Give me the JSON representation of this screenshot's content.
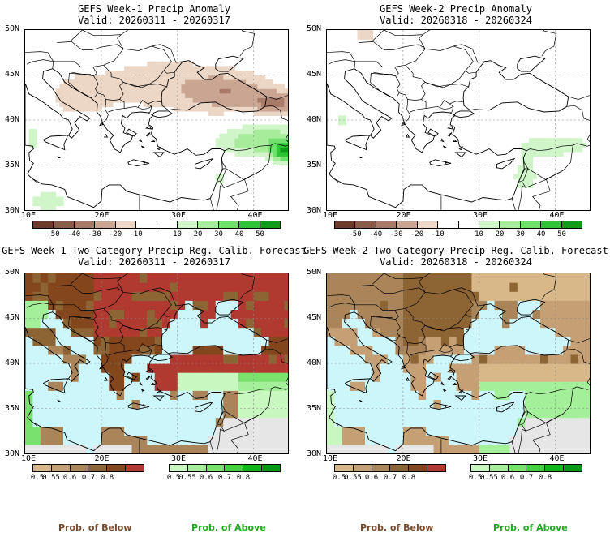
{
  "panels": [
    {
      "title": "GEFS Week-1 Precip Anomaly",
      "valid": "Valid: 20260311 - 20260317",
      "style": "anomaly"
    },
    {
      "title": "GEFS Week-2 Precip Anomaly",
      "valid": "Valid: 20260318 - 20260324",
      "style": "anomaly"
    },
    {
      "title": "GEFS Week-1 Two-Category Precip Reg. Calib. Forecast",
      "valid": "Valid: 20260311 - 20260317",
      "style": "prob-week1"
    },
    {
      "title": "GEFS Week-2 Two-Category Precip Reg. Calib. Forecast",
      "valid": "Valid: 20260318 - 20260324",
      "style": "prob-week2"
    }
  ],
  "axes": {
    "lat_labels": [
      "50N",
      "45N",
      "40N",
      "35N",
      "30N"
    ],
    "lon_labels": [
      "10E",
      "20E",
      "30E",
      "40E"
    ]
  },
  "anomaly_colorbar": {
    "colors": [
      "#6e3a2a",
      "#8c5a48",
      "#a87a68",
      "#c9a592",
      "#ecd6c6",
      "#ffffff",
      "#ffffff",
      "#cff5c8",
      "#a6ec9a",
      "#6fe06a",
      "#2fc436",
      "#0f9a1c"
    ],
    "ticks": [
      "-50",
      "-40",
      "-30",
      "-20",
      "-10",
      "10",
      "20",
      "30",
      "40",
      "50"
    ]
  },
  "below_colorbar": {
    "colors": [
      "#d8b888",
      "#c4a074",
      "#a98559",
      "#8d6434",
      "#83461d",
      "#b03a30"
    ],
    "ticks": [
      "0.5",
      "0.55",
      "0.6",
      "0.7",
      "0.8"
    ]
  },
  "above_colorbar": {
    "colors": [
      "#c8f8c0",
      "#a4f09a",
      "#78e26c",
      "#48d044",
      "#14b41e",
      "#0a9818"
    ],
    "ticks": [
      "0.5",
      "0.55",
      "0.6",
      "0.7",
      "0.8"
    ]
  },
  "footer": {
    "below_label": "Prob. of Below",
    "above_label": "Prob. of Above",
    "below_color": "#7a4a2a",
    "above_color": "#1faa1f"
  }
}
